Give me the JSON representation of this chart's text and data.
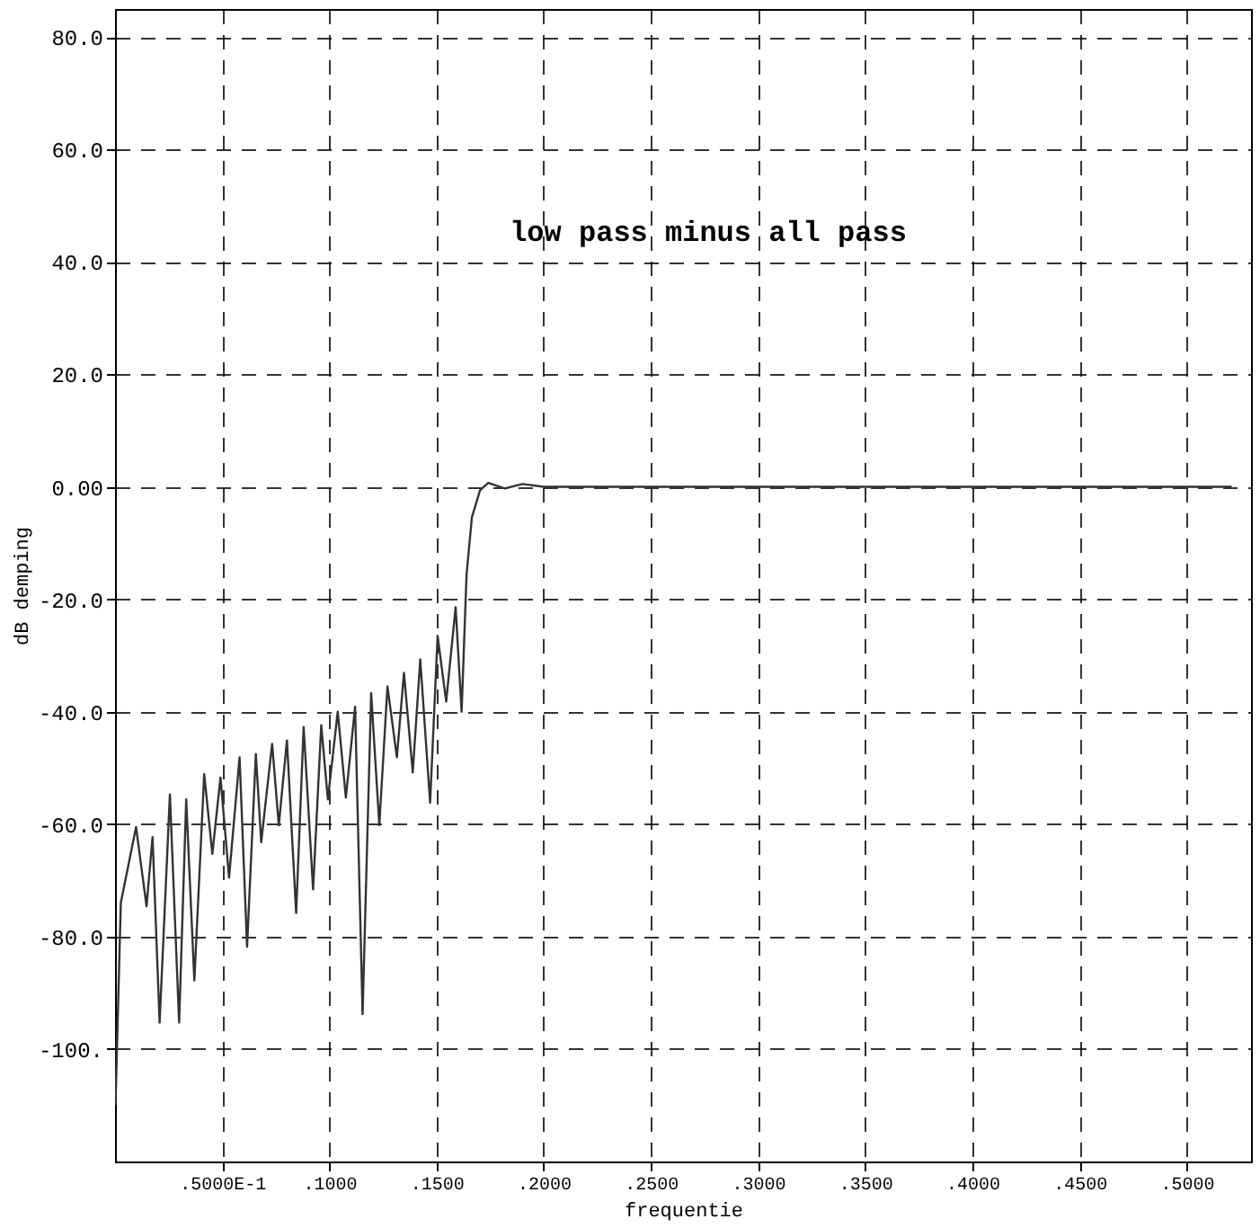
{
  "chart_data": {
    "type": "line",
    "xlabel": "frequentie",
    "ylabel": "dB demping",
    "annotations": [
      "low pass minus all pass"
    ],
    "x": [
      0.0002,
      0.0027,
      0.0098,
      0.0147,
      0.0175,
      0.0208,
      0.0256,
      0.0299,
      0.0332,
      0.037,
      0.0416,
      0.0454,
      0.0492,
      0.0532,
      0.0581,
      0.0616,
      0.0657,
      0.0682,
      0.0733,
      0.0764,
      0.0802,
      0.0845,
      0.088,
      0.0924,
      0.0962,
      0.0993,
      0.1039,
      0.1077,
      0.112,
      0.1155,
      0.1195,
      0.1233,
      0.1271,
      0.1315,
      0.1348,
      0.1389,
      0.1424,
      0.147,
      0.1505,
      0.1545,
      0.1589,
      0.1617,
      0.164,
      0.1665,
      0.1703,
      0.1741,
      0.1818,
      0.1901,
      0.2,
      0.23,
      0.3,
      0.4,
      0.5,
      0.521
    ],
    "series": [
      {
        "color": "#333333",
        "values": [
          -110,
          -74,
          -60.5,
          -74.6,
          -62.3,
          -95.3,
          -54.7,
          -95.3,
          -55.6,
          -87.8,
          -51.1,
          -65.3,
          -51.7,
          -69.5,
          -48.1,
          -81.8,
          -47.5,
          -63.2,
          -45.7,
          -60.2,
          -45.1,
          -75.8,
          -42.7,
          -71.6,
          -42.4,
          -55.6,
          -40,
          -55.3,
          -39.1,
          -93.8,
          -36.7,
          -60.2,
          -35.5,
          -48.1,
          -33.1,
          -50.8,
          -30.7,
          -56.2,
          -26.5,
          -38.2,
          -21.4,
          -40,
          -15.6,
          -5.4,
          -0.6,
          0.7,
          -0.3,
          0.5,
          0,
          0,
          0,
          0,
          0,
          0
        ]
      }
    ],
    "xlim": [
      0,
      0.53
    ],
    "ylim": [
      -120,
      85
    ],
    "xticks": [
      {
        "value": 0.05,
        "label": ".5000E-1"
      },
      {
        "value": 0.1,
        "label": ".1000"
      },
      {
        "value": 0.15,
        "label": ".1500"
      },
      {
        "value": 0.2,
        "label": ".2000"
      },
      {
        "value": 0.25,
        "label": ".2500"
      },
      {
        "value": 0.3,
        "label": ".3000"
      },
      {
        "value": 0.35,
        "label": ".3500"
      },
      {
        "value": 0.4,
        "label": ".4000"
      },
      {
        "value": 0.45,
        "label": ".4500"
      },
      {
        "value": 0.5,
        "label": ".5000"
      }
    ],
    "yticks": [
      {
        "value": -100,
        "label": "-100."
      },
      {
        "value": -80,
        "label": "-80.0"
      },
      {
        "value": -60,
        "label": "-60.0"
      },
      {
        "value": -40,
        "label": "-40.0"
      },
      {
        "value": -20,
        "label": "-20.0"
      },
      {
        "value": 0,
        "label": "0.00"
      },
      {
        "value": 20,
        "label": "20.0"
      },
      {
        "value": 40,
        "label": "40.0"
      },
      {
        "value": 60,
        "label": "60.0"
      },
      {
        "value": 80,
        "label": "80.0"
      }
    ],
    "grid": true,
    "line_style": "solid",
    "marker": "none"
  }
}
